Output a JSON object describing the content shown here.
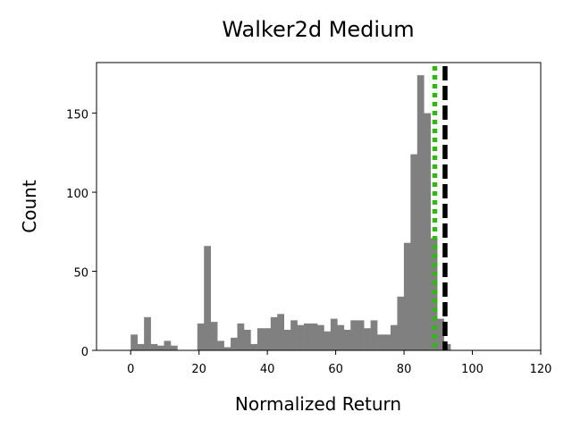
{
  "chart_data": {
    "type": "histogram",
    "title": "Walker2d Medium",
    "xlabel": "Normalized Return",
    "ylabel": "Count",
    "xlim": [
      -10,
      120
    ],
    "ylim": [
      0,
      182
    ],
    "x_ticks": [
      0,
      20,
      40,
      60,
      80,
      100,
      120
    ],
    "y_ticks": [
      0,
      50,
      100,
      150
    ],
    "grid": false,
    "bins": {
      "start": 0,
      "width": 1.95,
      "counts": [
        10,
        4,
        21,
        4,
        3,
        6,
        3,
        0,
        0,
        0,
        17,
        66,
        18,
        6,
        2,
        8,
        17,
        13,
        4,
        14,
        14,
        21,
        23,
        13,
        19,
        16,
        17,
        17,
        16,
        12,
        20,
        16,
        13,
        19,
        19,
        14,
        19,
        10,
        10,
        16,
        34,
        68,
        124,
        174,
        150,
        71,
        20,
        4
      ],
      "color": "#808080"
    },
    "reference_lines": [
      {
        "x": 89,
        "color": "#33b517",
        "style": "dotted"
      },
      {
        "x": 92,
        "color": "#000000",
        "style": "dashed"
      }
    ]
  }
}
